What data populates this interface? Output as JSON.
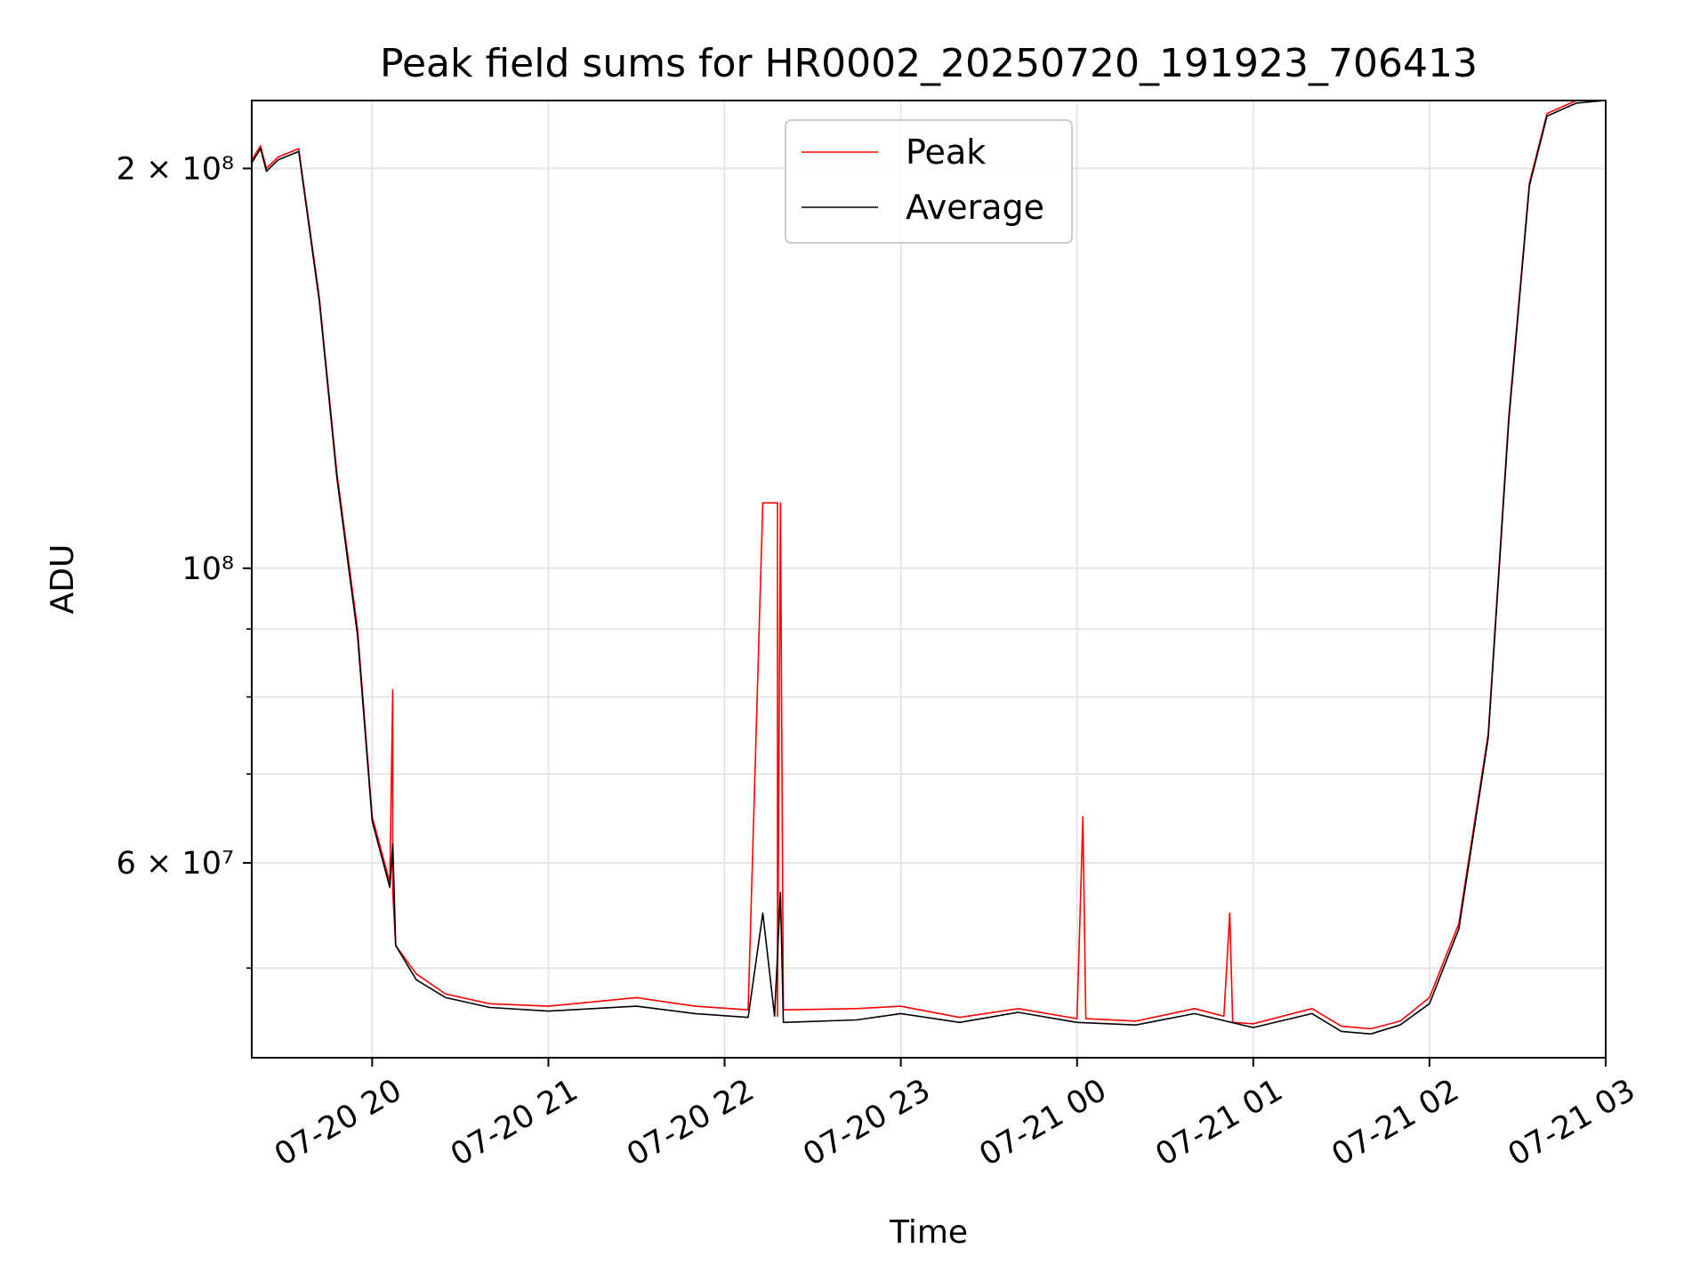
{
  "chart_data": {
    "type": "line",
    "title": "Peak field sums for HR0002_20250720_191923_706413",
    "xlabel": "Time",
    "ylabel": "ADU",
    "x_axis_type": "datetime",
    "xlim": [
      "2025-07-20 19:19",
      "2025-07-21 03:00"
    ],
    "ylim": [
      42800000,
      225000000
    ],
    "y_scale": "log",
    "grid": true,
    "legend": {
      "placement": "upper center"
    },
    "x_tick_labels": [
      "07-20 20",
      "07-20 21",
      "07-20 22",
      "07-20 23",
      "07-21 00",
      "07-21 01",
      "07-21 02",
      "07-21 03"
    ],
    "x_ticks": [
      "2025-07-20 20:00",
      "2025-07-20 21:00",
      "2025-07-20 22:00",
      "2025-07-20 23:00",
      "2025-07-21 00:00",
      "2025-07-21 01:00",
      "2025-07-21 02:00",
      "2025-07-21 03:00"
    ],
    "y_ticks": [
      {
        "value": 200000000,
        "label": "2 × 10⁸"
      },
      {
        "value": 100000000,
        "label": "10⁸"
      },
      {
        "value": 60000000,
        "label": "6 × 10⁷"
      }
    ],
    "y_minor_ticks": [
      50000000,
      70000000,
      80000000,
      90000000
    ],
    "series": [
      {
        "name": "Peak",
        "color": "#ff0000",
        "points": [
          [
            "2025-07-20 19:19",
            203000000
          ],
          [
            "2025-07-20 19:22",
            208000000
          ],
          [
            "2025-07-20 19:24",
            200000000
          ],
          [
            "2025-07-20 19:28",
            204000000
          ],
          [
            "2025-07-20 19:35",
            207000000
          ],
          [
            "2025-07-20 19:42",
            160000000
          ],
          [
            "2025-07-20 19:48",
            118000000
          ],
          [
            "2025-07-20 19:55",
            90000000
          ],
          [
            "2025-07-20 20:00",
            65000000
          ],
          [
            "2025-07-20 20:06",
            58000000
          ],
          [
            "2025-07-20 20:07",
            81000000
          ],
          [
            "2025-07-20 20:07",
            57000000
          ],
          [
            "2025-07-20 20:08",
            52000000
          ],
          [
            "2025-07-20 20:15",
            49500000
          ],
          [
            "2025-07-20 20:25",
            47800000
          ],
          [
            "2025-07-20 20:40",
            47000000
          ],
          [
            "2025-07-20 21:00",
            46800000
          ],
          [
            "2025-07-20 21:30",
            47500000
          ],
          [
            "2025-07-20 21:50",
            46800000
          ],
          [
            "2025-07-20 22:08",
            46500000
          ],
          [
            "2025-07-20 22:13",
            112000000
          ],
          [
            "2025-07-20 22:18",
            112000000
          ],
          [
            "2025-07-20 22:18",
            46000000
          ],
          [
            "2025-07-20 22:19",
            112000000
          ],
          [
            "2025-07-20 22:20",
            46500000
          ],
          [
            "2025-07-20 22:45",
            46600000
          ],
          [
            "2025-07-20 23:00",
            46800000
          ],
          [
            "2025-07-20 23:20",
            45900000
          ],
          [
            "2025-07-20 23:40",
            46600000
          ],
          [
            "2025-07-21 00:00",
            45800000
          ],
          [
            "2025-07-21 00:02",
            65000000
          ],
          [
            "2025-07-21 00:03",
            45800000
          ],
          [
            "2025-07-21 00:20",
            45600000
          ],
          [
            "2025-07-21 00:40",
            46600000
          ],
          [
            "2025-07-21 00:50",
            46000000
          ],
          [
            "2025-07-21 00:52",
            55000000
          ],
          [
            "2025-07-21 00:53",
            45500000
          ],
          [
            "2025-07-21 01:00",
            45400000
          ],
          [
            "2025-07-21 01:20",
            46600000
          ],
          [
            "2025-07-21 01:30",
            45200000
          ],
          [
            "2025-07-21 01:40",
            45000000
          ],
          [
            "2025-07-21 01:50",
            45600000
          ],
          [
            "2025-07-21 02:00",
            47500000
          ],
          [
            "2025-07-21 02:10",
            54000000
          ],
          [
            "2025-07-21 02:20",
            75000000
          ],
          [
            "2025-07-21 02:27",
            130000000
          ],
          [
            "2025-07-21 02:34",
            195000000
          ],
          [
            "2025-07-21 02:40",
            220000000
          ],
          [
            "2025-07-21 02:50",
            225000000
          ],
          [
            "2025-07-21 03:00",
            225000000
          ]
        ]
      },
      {
        "name": "Average",
        "color": "#000000",
        "points": [
          [
            "2025-07-20 19:19",
            202000000
          ],
          [
            "2025-07-20 19:22",
            207000000
          ],
          [
            "2025-07-20 19:24",
            199000000
          ],
          [
            "2025-07-20 19:28",
            203000000
          ],
          [
            "2025-07-20 19:35",
            206000000
          ],
          [
            "2025-07-20 19:42",
            159000000
          ],
          [
            "2025-07-20 19:48",
            117000000
          ],
          [
            "2025-07-20 19:55",
            89000000
          ],
          [
            "2025-07-20 20:00",
            64500000
          ],
          [
            "2025-07-20 20:06",
            57500000
          ],
          [
            "2025-07-20 20:07",
            62000000
          ],
          [
            "2025-07-20 20:08",
            52000000
          ],
          [
            "2025-07-20 20:15",
            49000000
          ],
          [
            "2025-07-20 20:25",
            47500000
          ],
          [
            "2025-07-20 20:40",
            46700000
          ],
          [
            "2025-07-20 21:00",
            46400000
          ],
          [
            "2025-07-20 21:30",
            46800000
          ],
          [
            "2025-07-20 21:50",
            46200000
          ],
          [
            "2025-07-20 22:08",
            45900000
          ],
          [
            "2025-07-20 22:13",
            55000000
          ],
          [
            "2025-07-20 22:17",
            46000000
          ],
          [
            "2025-07-20 22:19",
            57000000
          ],
          [
            "2025-07-20 22:20",
            45500000
          ],
          [
            "2025-07-20 22:45",
            45700000
          ],
          [
            "2025-07-20 23:00",
            46200000
          ],
          [
            "2025-07-20 23:20",
            45500000
          ],
          [
            "2025-07-20 23:40",
            46300000
          ],
          [
            "2025-07-21 00:00",
            45500000
          ],
          [
            "2025-07-21 00:20",
            45300000
          ],
          [
            "2025-07-21 00:40",
            46200000
          ],
          [
            "2025-07-21 01:00",
            45100000
          ],
          [
            "2025-07-21 01:20",
            46200000
          ],
          [
            "2025-07-21 01:30",
            44800000
          ],
          [
            "2025-07-21 01:40",
            44600000
          ],
          [
            "2025-07-21 01:50",
            45300000
          ],
          [
            "2025-07-21 02:00",
            47000000
          ],
          [
            "2025-07-21 02:10",
            53500000
          ],
          [
            "2025-07-21 02:20",
            74500000
          ],
          [
            "2025-07-21 02:27",
            129000000
          ],
          [
            "2025-07-21 02:34",
            194000000
          ],
          [
            "2025-07-21 02:40",
            219000000
          ],
          [
            "2025-07-21 02:50",
            224000000
          ],
          [
            "2025-07-21 03:00",
            225000000
          ]
        ]
      }
    ]
  }
}
